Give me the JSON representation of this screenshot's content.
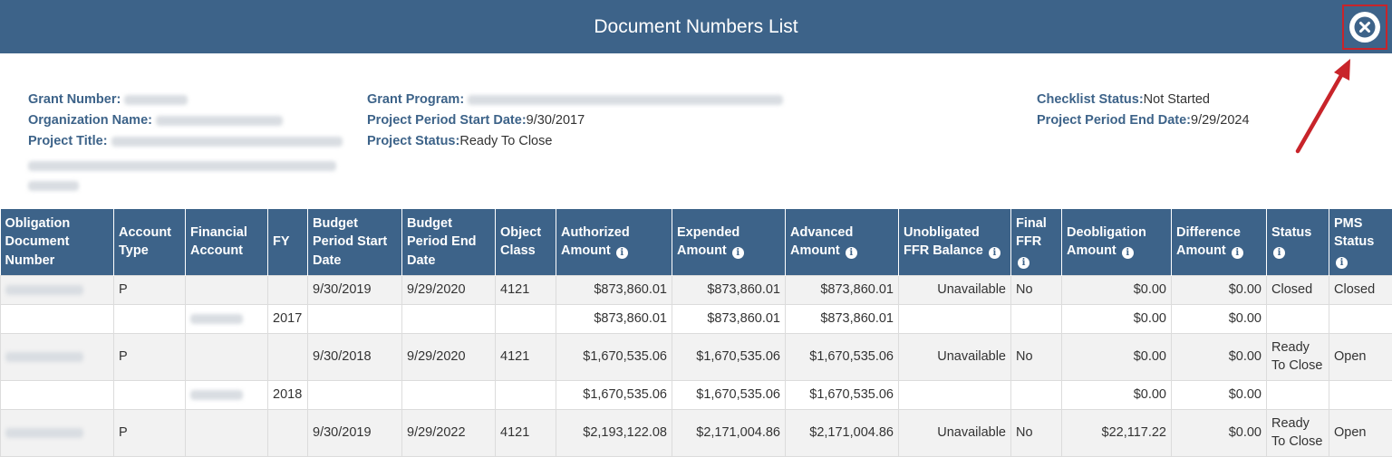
{
  "dialog": {
    "title": "Document Numbers List",
    "close_icon": "close-circle-icon"
  },
  "info": {
    "grant_number_label": "Grant Number:",
    "organization_name_label": "Organization Name:",
    "project_title_label": "Project Title:",
    "grant_program_label": "Grant Program:",
    "project_period_start_label": "Project Period Start Date:",
    "project_period_start_value": "9/30/2017",
    "project_status_label": "Project Status:",
    "project_status_value": "Ready To Close",
    "checklist_status_label": "Checklist Status:",
    "checklist_status_value": "Not Started",
    "project_period_end_label": "Project Period End Date:",
    "project_period_end_value": "9/29/2024"
  },
  "table": {
    "headers": [
      "Obligation Document Number",
      "Account Type",
      "Financial Account",
      "FY",
      "Budget Period Start Date",
      "Budget Period End Date",
      "Object Class",
      "Authorized Amount",
      "Expended Amount",
      "Advanced Amount",
      "Unobligated FFR Balance",
      "Final FFR",
      "Deobligation Amount",
      "Difference Amount",
      "Status",
      "PMS Status"
    ],
    "rows": [
      [
        "",
        "P",
        "",
        "",
        "9/30/2019",
        "9/29/2020",
        "4121",
        "$873,860.01",
        "$873,860.01",
        "$873,860.01",
        "Unavailable",
        "No",
        "$0.00",
        "$0.00",
        "Closed",
        "Closed"
      ],
      [
        "",
        "",
        "",
        "2017",
        "",
        "",
        "",
        "$873,860.01",
        "$873,860.01",
        "$873,860.01",
        "",
        "",
        "$0.00",
        "$0.00",
        "",
        ""
      ],
      [
        "",
        "P",
        "",
        "",
        "9/30/2018",
        "9/29/2020",
        "4121",
        "$1,670,535.06",
        "$1,670,535.06",
        "$1,670,535.06",
        "Unavailable",
        "No",
        "$0.00",
        "$0.00",
        "Ready To Close",
        "Open"
      ],
      [
        "",
        "",
        "",
        "2018",
        "",
        "",
        "",
        "$1,670,535.06",
        "$1,670,535.06",
        "$1,670,535.06",
        "",
        "",
        "$0.00",
        "$0.00",
        "",
        ""
      ],
      [
        "",
        "P",
        "",
        "",
        "9/30/2019",
        "9/29/2022",
        "4121",
        "$2,193,122.08",
        "$2,171,004.86",
        "$2,171,004.86",
        "Unavailable",
        "No",
        "$22,117.22",
        "$0.00",
        "Ready To Close",
        "Open"
      ]
    ]
  },
  "colors": {
    "header_bg": "#3d6389",
    "label_text": "#3d6389",
    "annotation": "#c8242a"
  }
}
